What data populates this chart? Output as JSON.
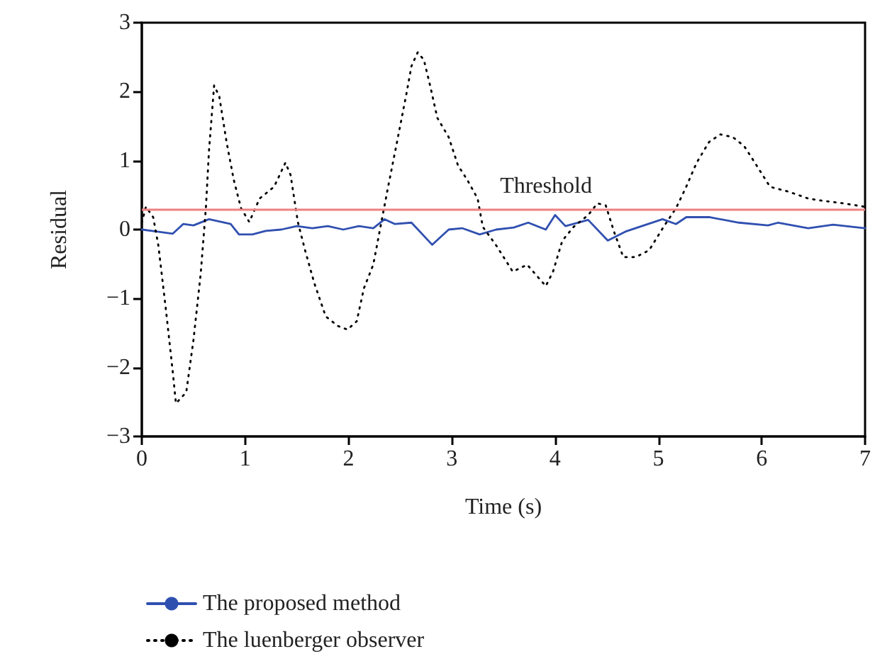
{
  "chart_data": {
    "type": "line",
    "xlabel": "Time (s)",
    "ylabel": "Residual",
    "xlim": [
      0,
      7
    ],
    "xticks": [
      0,
      1,
      2,
      3,
      4,
      5,
      6,
      7
    ],
    "ylim": [
      -3,
      3
    ],
    "yticks": [
      -3,
      -2,
      -1,
      0,
      1,
      2,
      3
    ],
    "grid": false,
    "legend": "bottom left",
    "marker": "none",
    "ref_lines": [
      {
        "axis": "y",
        "value": 0.3,
        "label": "Threshold",
        "color": "#f08080",
        "line_style": "solid"
      }
    ],
    "series": [
      {
        "name": "The proposed method",
        "color": "#3050b0",
        "line_style": "solid",
        "x": [
          0,
          0.15,
          0.3,
          0.4,
          0.5,
          0.65,
          0.86,
          0.94,
          1.07,
          1.2,
          1.35,
          1.5,
          1.65,
          1.8,
          1.95,
          2.1,
          2.24,
          2.35,
          2.45,
          2.61,
          2.81,
          2.97,
          3.1,
          3.27,
          3.43,
          3.6,
          3.74,
          3.91,
          4.0,
          4.1,
          4.32,
          4.51,
          4.68,
          4.88,
          5.04,
          5.17,
          5.27,
          5.49,
          5.78,
          6.06,
          6.16,
          6.45,
          6.69,
          7.0
        ],
        "values": [
          0,
          -0.03,
          -0.06,
          0.08,
          0.06,
          0.15,
          0.08,
          -0.07,
          -0.07,
          -0.02,
          0,
          0.05,
          0.02,
          0.05,
          0,
          0.05,
          0.02,
          0.15,
          0.08,
          0.1,
          -0.22,
          0,
          0.02,
          -0.07,
          0,
          0.03,
          0.1,
          0,
          0.21,
          0.05,
          0.14,
          -0.16,
          -0.03,
          0.07,
          0.15,
          0.08,
          0.18,
          0.18,
          0.1,
          0.06,
          0.1,
          0.02,
          0.07,
          0.02
        ]
      },
      {
        "name": "The luenberger observer",
        "color": "#000000",
        "line_style": "dotted",
        "x": [
          0,
          0.04,
          0.11,
          0.16,
          0.23,
          0.3,
          0.33,
          0.43,
          0.5,
          0.57,
          0.62,
          0.65,
          0.7,
          0.75,
          0.82,
          0.89,
          0.96,
          1.04,
          1.14,
          1.28,
          1.39,
          1.44,
          1.51,
          1.58,
          1.67,
          1.78,
          1.9,
          1.99,
          2.08,
          2.15,
          2.24,
          2.31,
          2.38,
          2.47,
          2.56,
          2.61,
          2.67,
          2.73,
          2.79,
          2.86,
          2.97,
          3.06,
          3.15,
          3.25,
          3.3,
          3.43,
          3.59,
          3.73,
          3.91,
          3.98,
          4.07,
          4.18,
          4.32,
          4.41,
          4.49,
          4.57,
          4.66,
          4.78,
          4.91,
          5.05,
          5.17,
          5.26,
          5.37,
          5.49,
          5.6,
          5.72,
          5.83,
          5.95,
          6.08,
          6.26,
          6.45,
          6.58,
          6.79,
          7.0
        ],
        "values": [
          0.1,
          0.33,
          0.18,
          -0.23,
          -1.12,
          -2.07,
          -2.52,
          -2.36,
          -1.6,
          -0.64,
          0.31,
          1.14,
          2.09,
          1.93,
          1.27,
          0.72,
          0.31,
          0.11,
          0.45,
          0.62,
          0.97,
          0.79,
          0.11,
          -0.3,
          -0.78,
          -1.26,
          -1.4,
          -1.45,
          -1.33,
          -0.85,
          -0.51,
          0.04,
          0.59,
          1.27,
          1.96,
          2.37,
          2.57,
          2.46,
          2.09,
          1.62,
          1.34,
          0.93,
          0.72,
          0.45,
          0.04,
          -0.23,
          -0.61,
          -0.51,
          -0.82,
          -0.61,
          -0.16,
          0.04,
          0.21,
          0.38,
          0.35,
          -0.03,
          -0.4,
          -0.4,
          -0.3,
          0.04,
          0.31,
          0.59,
          0.97,
          1.27,
          1.38,
          1.34,
          1.21,
          0.93,
          0.62,
          0.55,
          0.45,
          0.42,
          0.38,
          0.33
        ]
      }
    ]
  }
}
